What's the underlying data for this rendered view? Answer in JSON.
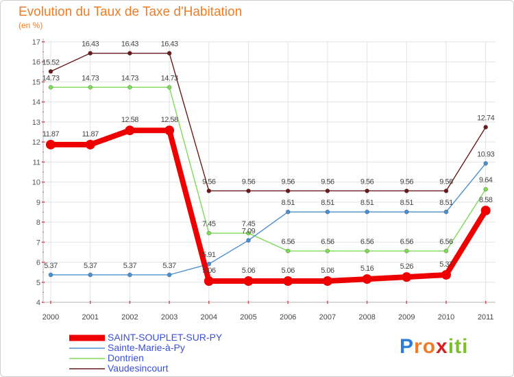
{
  "chart_data": {
    "type": "line",
    "title": "Evolution du Taux de Taxe d'Habitation",
    "unit_label": "(en %)",
    "x": [
      "2000",
      "2001",
      "2002",
      "2003",
      "2004",
      "2005",
      "2006",
      "2007",
      "2008",
      "2009",
      "2010",
      "2011"
    ],
    "ylim": [
      4,
      17
    ],
    "yticks": [
      "4",
      "5",
      "6",
      "7",
      "8",
      "9",
      "10",
      "11",
      "12",
      "13",
      "14",
      "15",
      "16",
      "17"
    ],
    "grid": true,
    "legend_placement": "bottom-left",
    "series": [
      {
        "name": "Vaudesincourt",
        "color": "#6a1a1a",
        "values": [
          15.52,
          16.43,
          16.43,
          16.43,
          9.56,
          9.56,
          9.56,
          9.56,
          9.56,
          9.56,
          9.56,
          12.74
        ],
        "labels": [
          "15.52",
          "16.43",
          "16.43",
          "16.43",
          "9.56",
          "9.56",
          "9.56",
          "9.56",
          "9.56",
          "9.56",
          "9.56",
          "12.74"
        ]
      },
      {
        "name": "Dontrien",
        "color": "#7ed957",
        "values": [
          14.73,
          14.73,
          14.73,
          14.73,
          7.45,
          7.45,
          6.56,
          6.56,
          6.56,
          6.56,
          6.56,
          9.64
        ],
        "labels": [
          "14.73",
          "14.73",
          "14.73",
          "14.73",
          "7.45",
          "7.45",
          "6.56",
          "6.56",
          "6.56",
          "6.56",
          "6.56",
          "9.64"
        ]
      },
      {
        "name": "Sainte-Marie-à-Py",
        "color": "#4a8fd0",
        "values": [
          5.37,
          5.37,
          5.37,
          5.37,
          5.91,
          7.09,
          8.51,
          8.51,
          8.51,
          8.51,
          8.51,
          10.93
        ],
        "labels": [
          "5.37",
          "5.37",
          "5.37",
          "5.37",
          "5.91",
          "7.09",
          "8.51",
          "8.51",
          "8.51",
          "8.51",
          "8.51",
          "10.93"
        ]
      },
      {
        "name": "SAINT-SOUPLET-SUR-PY",
        "color": "#ee0000",
        "values": [
          11.87,
          11.87,
          12.58,
          12.58,
          5.06,
          5.06,
          5.06,
          5.06,
          5.16,
          5.26,
          5.37,
          8.58
        ],
        "labels": [
          "11.87",
          "11.87",
          "12.58",
          "12.58",
          "5.06",
          "5.06",
          "5.06",
          "5.06",
          "5.16",
          "5.26",
          "5.37",
          "8.58"
        ]
      }
    ]
  },
  "legend": {
    "items": [
      {
        "label": "SAINT-SOUPLET-SUR-PY",
        "color": "#ee0000"
      },
      {
        "label": "Sainte-Marie-à-Py",
        "color": "#4a8fd0"
      },
      {
        "label": "Dontrien",
        "color": "#7ed957"
      },
      {
        "label": "Vaudesincourt",
        "color": "#6a1a1a"
      }
    ]
  },
  "brand": {
    "letters": [
      "P",
      "r",
      "o",
      "x",
      "i",
      "t",
      "i"
    ],
    "colors": [
      "#2a7fd4",
      "#f07c26",
      "#f07c26",
      "#d82020",
      "#7cbf2a",
      "#7cbf2a",
      "#7cbf2a"
    ]
  }
}
